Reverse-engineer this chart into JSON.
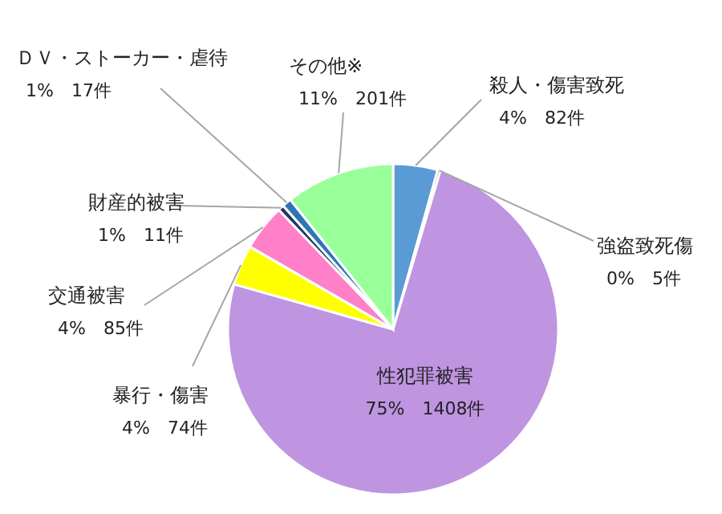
{
  "chart_data": {
    "type": "pie",
    "categories": [
      "殺人・傷害致死",
      "強盗致死傷",
      "性犯罪被害",
      "暴行・傷害",
      "交通被害",
      "財産的被害",
      "ＤＶ・ストーカー・虐待",
      "その他※"
    ],
    "values": [
      82,
      5,
      1408,
      74,
      85,
      11,
      17,
      201
    ],
    "value_labels": [
      "4%　82件",
      "0%　5件",
      "75%　1408件",
      "4%　74件",
      "4%　85件",
      "1%　11件",
      "1%　17件",
      "11%　201件"
    ],
    "colors": [
      "#5b9bd5",
      "#c00000",
      "#bf94e0",
      "#ffff00",
      "#ff7fc8",
      "#203864",
      "#2e75b6",
      "#99ff99"
    ]
  }
}
